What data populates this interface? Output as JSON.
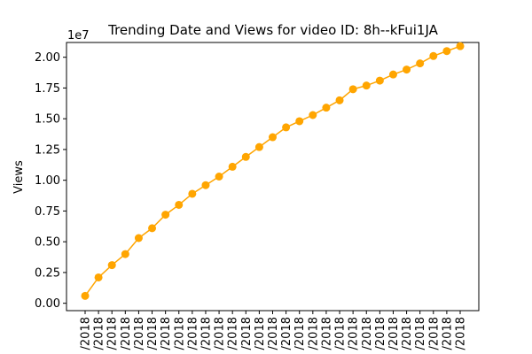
{
  "chart_data": {
    "type": "line",
    "title": "Trending Date and Views for video ID: 8h--kFui1JA",
    "ylabel": "Views",
    "xlabel": "",
    "y_offset_label": "1e7",
    "ylim": [
      -0.06,
      2.12
    ],
    "y_ticks": [
      0.0,
      0.25,
      0.5,
      0.75,
      1.0,
      1.25,
      1.5,
      1.75,
      2.0
    ],
    "y_tick_labels": [
      "0.00",
      "0.25",
      "0.50",
      "0.75",
      "1.00",
      "1.25",
      "1.50",
      "1.75",
      "2.00"
    ],
    "x_tick_labels": [
      "/2018",
      "/2018",
      "/2018",
      "/2018",
      "/2018",
      "/2018",
      "/2018",
      "/2018",
      "/2018",
      "/2018",
      "/2018",
      "/2018",
      "/2018",
      "/2018",
      "/2018",
      "/2018",
      "/2018",
      "/2018",
      "/2018",
      "/2018",
      "/2018",
      "/2018",
      "/2018",
      "/2018",
      "/2018",
      "/2018",
      "/2018",
      "/2018",
      "/2018"
    ],
    "series": [
      {
        "color": "#ffa500",
        "values": [
          0.06,
          0.21,
          0.31,
          0.4,
          0.53,
          0.61,
          0.72,
          0.8,
          0.89,
          0.96,
          1.03,
          1.11,
          1.19,
          1.27,
          1.35,
          1.43,
          1.48,
          1.53,
          1.59,
          1.65,
          1.74,
          1.77,
          1.81,
          1.86,
          1.9,
          1.95,
          2.01,
          2.05,
          2.09
        ]
      }
    ],
    "grid": false,
    "legend": "none"
  }
}
